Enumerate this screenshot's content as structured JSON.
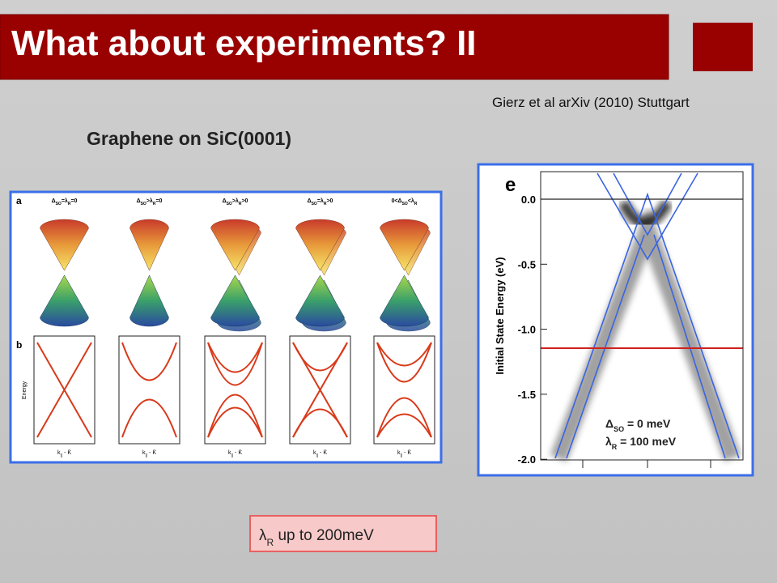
{
  "header": {
    "title": "What about experiments? II"
  },
  "citation": "Gierz et al arXiv (2010) Stuttgart",
  "subtitle": "Graphene on SiC(0001)",
  "figure_left": {
    "panel_a": "a",
    "panel_b": "b",
    "conditions": [
      [
        "Δ",
        "SO",
        "=λ",
        "R",
        "=0"
      ],
      [
        "Δ",
        "SO",
        ">λ",
        "R",
        "=0"
      ],
      [
        "Δ",
        "SO",
        ">λ",
        "R",
        ">0"
      ],
      [
        "Δ",
        "SO",
        "=λ",
        "R",
        ">0"
      ],
      [
        "0<Δ",
        "SO",
        "<λ",
        "R"
      ]
    ],
    "y_axis_label": "Energy",
    "x_axis_label": [
      "k",
      "||",
      " - K̄"
    ]
  },
  "figure_right": {
    "panel": "e",
    "y_axis_label": "Initial State Energy (eV)",
    "yticks": [
      "0.0",
      "-0.5",
      "-1.0",
      "-1.5",
      "-2.0"
    ],
    "annotations": [
      [
        "Δ",
        "SO",
        " = 0 meV"
      ],
      [
        "λ",
        "R",
        " = 100 meV"
      ]
    ]
  },
  "note": [
    "λ",
    "R",
    " up to 200meV"
  ]
}
